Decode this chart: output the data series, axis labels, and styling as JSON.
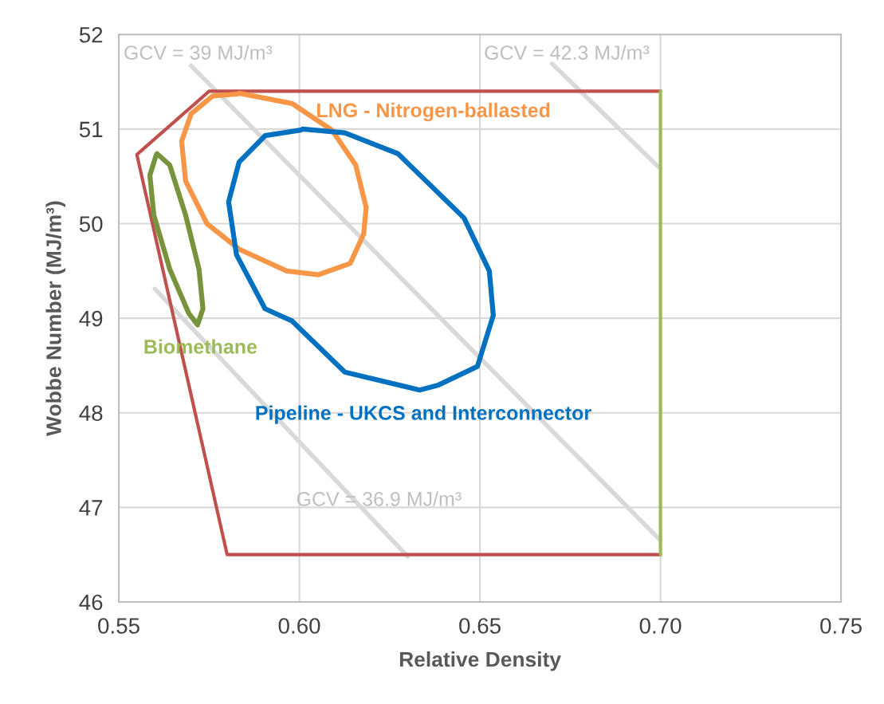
{
  "chart_data": {
    "type": "line",
    "xlabel": "Relative Density",
    "ylabel": "Wobbe Number (MJ/m³)",
    "xlim": [
      0.55,
      0.75
    ],
    "xticks": [
      {
        "value": 0.55,
        "label": "0.55"
      },
      {
        "value": 0.6,
        "label": "0.60"
      },
      {
        "value": 0.65,
        "label": "0.65"
      },
      {
        "value": 0.7,
        "label": "0.70"
      },
      {
        "value": 0.75,
        "label": "0.75"
      }
    ],
    "ylim": [
      46,
      52
    ],
    "yticks": [
      46,
      47,
      48,
      49,
      50,
      51,
      52
    ],
    "grid": true,
    "legend": false,
    "marker": "none",
    "line_style": "solid",
    "series": [
      {
        "color": "#c0504d",
        "x": [
          0.7,
          0.58,
          0.555,
          0.575,
          0.7
        ],
        "values": [
          46.5,
          46.5,
          50.73,
          51.4,
          51.4
        ]
      },
      {
        "color": "#9bbb59",
        "x": [
          0.7,
          0.7
        ],
        "values": [
          46.5,
          51.4
        ]
      },
      {
        "name": "GCV = 39 MJ/m³",
        "color": "#d9d9d9",
        "x": [
          0.57,
          0.7
        ],
        "values": [
          51.67,
          46.65
        ]
      },
      {
        "name": "GCV = 42.3 MJ/m³",
        "color": "#d9d9d9",
        "x": [
          0.67,
          0.7
        ],
        "values": [
          51.69,
          50.58
        ]
      },
      {
        "name": "GCV = 36.9 MJ/m³",
        "color": "#d9d9d9",
        "x": [
          0.56,
          0.63
        ],
        "values": [
          49.31,
          46.48
        ]
      },
      {
        "name": "Biomethane",
        "color": "#77933c",
        "x": [
          0.5606,
          0.5641,
          0.5685,
          0.5722,
          0.5733,
          0.5718,
          0.5694,
          0.5641,
          0.5597,
          0.5586,
          0.5603
        ],
        "values": [
          50.74,
          50.62,
          50.09,
          49.52,
          49.1,
          48.93,
          49.05,
          49.52,
          50.09,
          50.51,
          50.72
        ]
      },
      {
        "name": "LNG - Nitrogen-ballasted",
        "color": "#f79646",
        "x": [
          0.5833,
          0.598,
          0.609,
          0.6156,
          0.6185,
          0.6178,
          0.6141,
          0.6053,
          0.5965,
          0.5833,
          0.5744,
          0.5685,
          0.5674,
          0.57,
          0.576,
          0.5828
        ],
        "values": [
          51.38,
          51.27,
          50.99,
          50.62,
          50.17,
          49.89,
          49.58,
          49.46,
          49.5,
          49.73,
          50.0,
          50.45,
          50.87,
          51.16,
          51.35,
          51.37
        ]
      },
      {
        "name": "Pipeline - UKCS and Interconnector",
        "color": "#0070c0",
        "x": [
          0.6009,
          0.6126,
          0.6273,
          0.6456,
          0.6526,
          0.6537,
          0.6493,
          0.6383,
          0.6333,
          0.6126,
          0.598,
          0.5905,
          0.5826,
          0.5804,
          0.5833,
          0.5905,
          0.6004
        ],
        "values": [
          51.0,
          50.96,
          50.74,
          50.06,
          49.5,
          49.03,
          48.49,
          48.29,
          48.24,
          48.43,
          48.97,
          49.1,
          49.67,
          50.23,
          50.65,
          50.93,
          50.99
        ]
      }
    ]
  }
}
